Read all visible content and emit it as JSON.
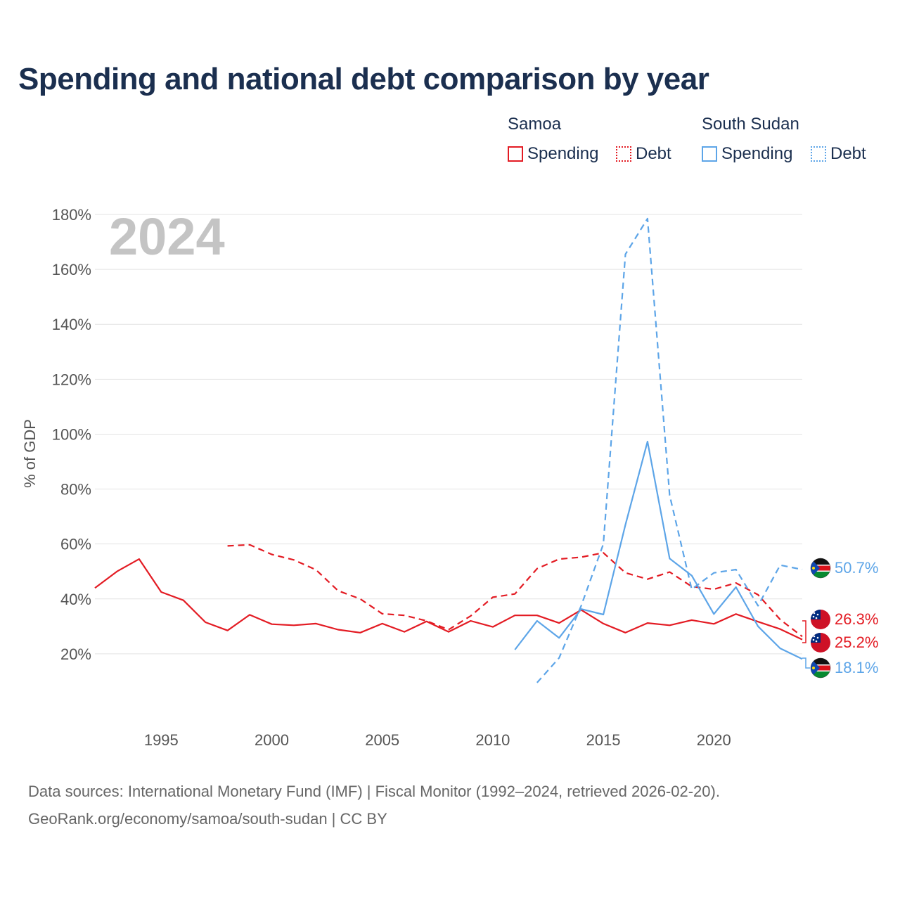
{
  "title": "Spending and national debt comparison by year",
  "year_watermark": "2024",
  "legend": {
    "groups": [
      {
        "name": "Samoa",
        "color": "#e31b23",
        "items": [
          "Spending",
          "Debt"
        ]
      },
      {
        "name": "South Sudan",
        "color": "#5da5e8",
        "items": [
          "Spending",
          "Debt"
        ]
      }
    ]
  },
  "footer": {
    "source": "Data sources: International Monetary Fund (IMF) | Fiscal Monitor (1992–2024, retrieved 2026-02-20).",
    "credit": "GeoRank.org/economy/samoa/south-sudan | CC BY"
  },
  "chart_data": {
    "type": "line",
    "title": "Spending and national debt comparison by year",
    "xlabel": "",
    "ylabel": "% of GDP",
    "xlim": [
      1992,
      2024
    ],
    "ylim": [
      0,
      180
    ],
    "x_ticks": [
      1995,
      2000,
      2005,
      2010,
      2015,
      2020
    ],
    "y_ticks": [
      20,
      40,
      60,
      80,
      100,
      120,
      140,
      160,
      180
    ],
    "y_tick_labels": [
      "20%",
      "40%",
      "60%",
      "80%",
      "100%",
      "120%",
      "140%",
      "160%",
      "180%"
    ],
    "grid": true,
    "series": [
      {
        "name": "Samoa Spending",
        "country": "Samoa",
        "metric": "Spending",
        "color": "#e31b23",
        "dashed": false,
        "x": [
          1992,
          1993,
          1994,
          1995,
          1996,
          1997,
          1998,
          1999,
          2000,
          2001,
          2002,
          2003,
          2004,
          2005,
          2006,
          2007,
          2008,
          2009,
          2010,
          2011,
          2012,
          2013,
          2014,
          2015,
          2016,
          2017,
          2018,
          2019,
          2020,
          2021,
          2022,
          2023,
          2024
        ],
        "y": [
          44,
          50,
          54.5,
          42.5,
          39.5,
          31.5,
          28.5,
          34.2,
          30.8,
          30.4,
          31,
          28.8,
          27.7,
          31,
          28,
          31.8,
          28,
          32,
          29.8,
          34,
          34,
          31.2,
          36,
          31,
          27.7,
          31.2,
          30.4,
          32.3,
          30.9,
          34.5,
          31.7,
          29,
          25.2
        ]
      },
      {
        "name": "Samoa Debt",
        "country": "Samoa",
        "metric": "Debt",
        "color": "#e31b23",
        "dashed": true,
        "x": [
          1998,
          1999,
          2000,
          2001,
          2002,
          2003,
          2004,
          2005,
          2006,
          2007,
          2008,
          2009,
          2010,
          2011,
          2012,
          2013,
          2014,
          2015,
          2016,
          2017,
          2018,
          2019,
          2020,
          2021,
          2022,
          2023,
          2024
        ],
        "y": [
          59.3,
          59.7,
          56.2,
          54.2,
          50.6,
          43,
          40,
          34.6,
          34,
          32,
          28.8,
          33.8,
          40.6,
          41.8,
          51,
          54.5,
          55.2,
          56.8,
          49.5,
          47.2,
          49.8,
          44.5,
          43.5,
          45.8,
          41.5,
          32.5,
          26.3
        ]
      },
      {
        "name": "South Sudan Spending",
        "country": "South Sudan",
        "metric": "Spending",
        "color": "#5da5e8",
        "dashed": false,
        "x": [
          2011,
          2012,
          2013,
          2014,
          2015,
          2016,
          2017,
          2018,
          2019,
          2020,
          2021,
          2022,
          2023,
          2024
        ],
        "y": [
          21.5,
          32,
          25.8,
          36.3,
          34.3,
          67,
          97.3,
          54.7,
          48.5,
          34.5,
          44.3,
          30,
          22,
          18.1
        ]
      },
      {
        "name": "South Sudan Debt",
        "country": "South Sudan",
        "metric": "Debt",
        "color": "#5da5e8",
        "dashed": true,
        "x": [
          2012,
          2013,
          2014,
          2015,
          2016,
          2017,
          2018,
          2019,
          2020,
          2021,
          2022,
          2023,
          2024
        ],
        "y": [
          9.5,
          18.5,
          37.5,
          60,
          165.5,
          178.5,
          77.7,
          43.5,
          49.5,
          50.7,
          37.5,
          52.3,
          50.7
        ]
      }
    ],
    "end_labels": [
      {
        "value": 50.7,
        "text": "50.7%",
        "country": "South Sudan",
        "color": "#5da5e8"
      },
      {
        "value": 26.3,
        "text": "26.3%",
        "country": "Samoa",
        "color": "#e31b23"
      },
      {
        "value": 25.2,
        "text": "25.2%",
        "country": "Samoa",
        "color": "#e31b23"
      },
      {
        "value": 18.1,
        "text": "18.1%",
        "country": "South Sudan",
        "color": "#5da5e8"
      }
    ]
  }
}
